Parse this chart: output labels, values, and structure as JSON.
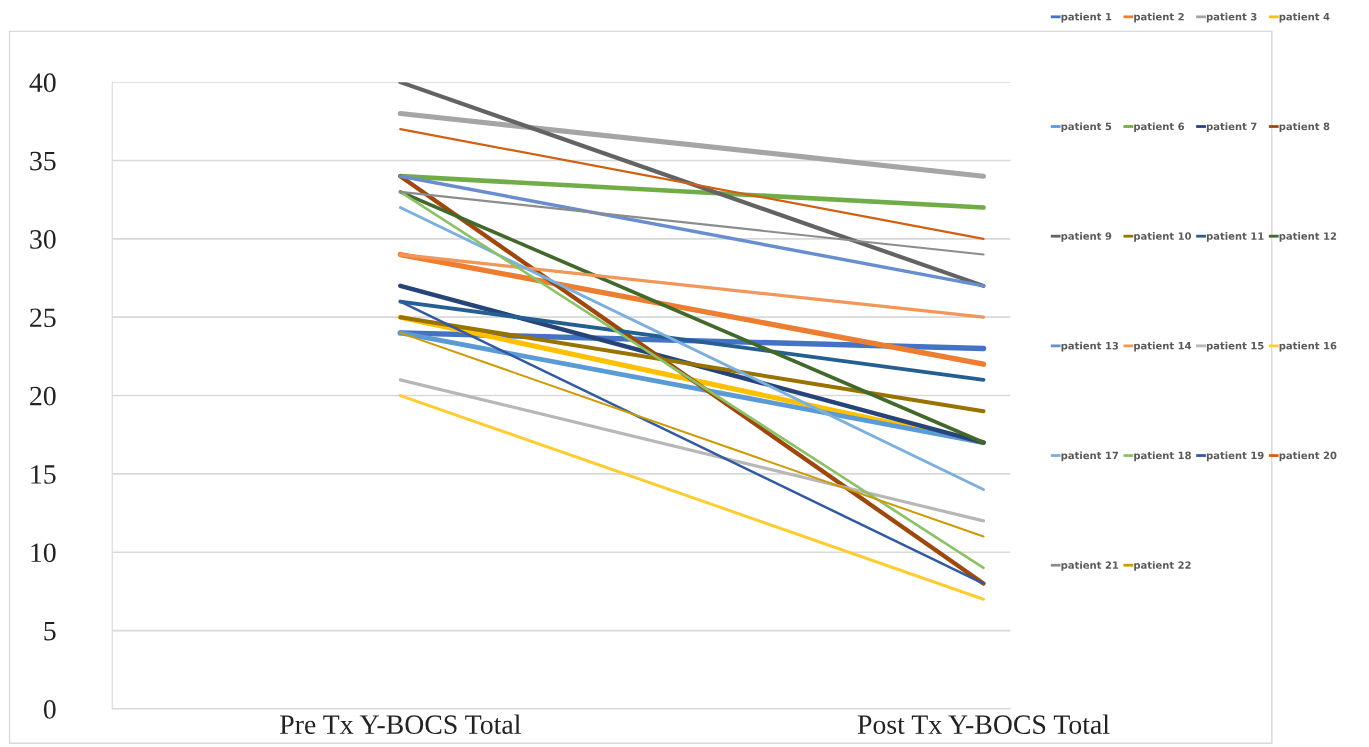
{
  "chart_data": {
    "type": "line",
    "categories": [
      "Pre Tx Y-BOCS Total",
      "Post Tx Y-BOCS Total"
    ],
    "ylim": [
      0,
      40
    ],
    "yticks": [
      0,
      5,
      10,
      15,
      20,
      25,
      30,
      35,
      40
    ],
    "grid": "y",
    "legend": "right",
    "marker": "none",
    "line_style": "solid",
    "series": [
      {
        "name": "patient 1",
        "color": "#4472c4",
        "values": [
          24,
          23
        ]
      },
      {
        "name": "patient 2",
        "color": "#ed7d31",
        "values": [
          29,
          22
        ]
      },
      {
        "name": "patient 3",
        "color": "#a5a5a5",
        "values": [
          38,
          34
        ]
      },
      {
        "name": "patient 4",
        "color": "#ffc000",
        "values": [
          25,
          17
        ]
      },
      {
        "name": "patient 5",
        "color": "#5b9bd5",
        "values": [
          24,
          17
        ]
      },
      {
        "name": "patient 6",
        "color": "#70ad47",
        "values": [
          34,
          32
        ]
      },
      {
        "name": "patient 7",
        "color": "#264478",
        "values": [
          27,
          17
        ]
      },
      {
        "name": "patient 8",
        "color": "#9e480e",
        "values": [
          34,
          8
        ]
      },
      {
        "name": "patient 9",
        "color": "#636363",
        "values": [
          40,
          27
        ]
      },
      {
        "name": "patient 10",
        "color": "#997300",
        "values": [
          25,
          19
        ]
      },
      {
        "name": "patient 11",
        "color": "#255e91",
        "values": [
          26,
          21
        ]
      },
      {
        "name": "patient 12",
        "color": "#43682b",
        "values": [
          33,
          17
        ]
      },
      {
        "name": "patient 13",
        "color": "#698ed0",
        "values": [
          34,
          27
        ]
      },
      {
        "name": "patient 14",
        "color": "#f1975a",
        "values": [
          29,
          25
        ]
      },
      {
        "name": "patient 15",
        "color": "#b7b7b7",
        "values": [
          21,
          12
        ]
      },
      {
        "name": "patient 16",
        "color": "#ffcd33",
        "values": [
          20,
          7
        ]
      },
      {
        "name": "patient 17",
        "color": "#7cafdd",
        "values": [
          32,
          14
        ]
      },
      {
        "name": "patient 18",
        "color": "#8cc168",
        "values": [
          33,
          9
        ]
      },
      {
        "name": "patient 19",
        "color": "#335aa1",
        "values": [
          26,
          8
        ]
      },
      {
        "name": "patient 20",
        "color": "#d26012",
        "values": [
          37,
          30
        ]
      },
      {
        "name": "patient 21",
        "color": "#8c8c8c",
        "values": [
          33,
          29
        ]
      },
      {
        "name": "patient 22",
        "color": "#cc9a06",
        "values": [
          24,
          11
        ]
      }
    ]
  }
}
